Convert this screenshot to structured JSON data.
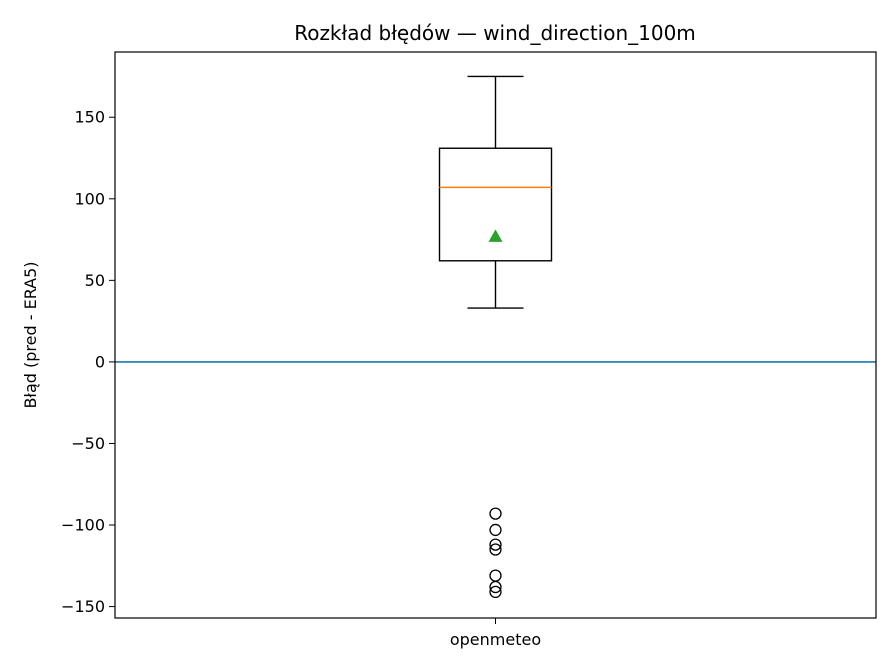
{
  "chart_data": {
    "type": "box",
    "title": "Rozkład błędów — wind_direction_100m",
    "xlabel": "",
    "ylabel": "Błąd (pred - ERA5)",
    "categories": [
      "openmeteo"
    ],
    "ylim": [
      -157,
      190
    ],
    "y_ticks": [
      150,
      100,
      50,
      0,
      -50,
      -100,
      -150
    ],
    "y_tick_labels": [
      "150",
      "100",
      "50",
      "0",
      "−50",
      "−100",
      "−150"
    ],
    "reference_line_y": 0,
    "grid": false,
    "boxes": [
      {
        "category": "openmeteo",
        "whisker_low": 33,
        "q1": 62,
        "median": 107,
        "q3": 131,
        "whisker_high": 175,
        "mean": 77,
        "outliers": [
          -93,
          -103,
          -112,
          -115,
          -131,
          -138,
          -141
        ]
      }
    ],
    "colors": {
      "box": "#000000",
      "median": "#ff7f0e",
      "mean_marker": "#2ca02c",
      "reference_line": "#1f77b4"
    }
  }
}
